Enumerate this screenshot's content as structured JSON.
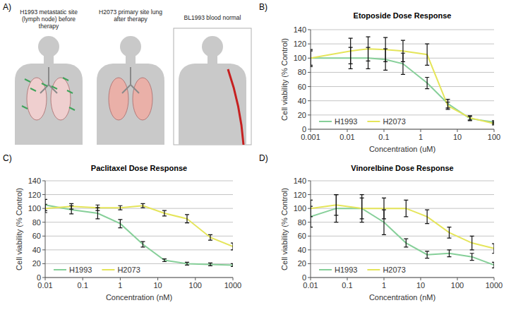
{
  "diagram": {
    "label": "A)",
    "panels": [
      {
        "caption": "H1993 metastatic site (lymph node) before therapy"
      },
      {
        "caption": "H2073 primary site lung after therapy"
      },
      {
        "caption": "BL1993 blood normal"
      }
    ]
  },
  "chart_data": [
    {
      "type": "line",
      "label": "B)",
      "title": "Etoposide Dose Response",
      "x_label": "Concentration (uM)",
      "y_label": "Cell viability (% Control)",
      "log": "x",
      "grid": true,
      "legend": "bottom-left",
      "xlim": [
        0.001,
        100
      ],
      "xticks": [
        0.001,
        0.01,
        0.1,
        1,
        10,
        100
      ],
      "ylim": [
        0,
        140
      ],
      "yticks": [
        0,
        20,
        40,
        60,
        80,
        100,
        120,
        140
      ],
      "x": [
        0.001,
        0.0123,
        0.037,
        0.11,
        0.33,
        1.5,
        5.5,
        22,
        100
      ],
      "series": [
        {
          "name": "H1993",
          "color": "#86cf99",
          "values": [
            100,
            100,
            100,
            98,
            92,
            65,
            36,
            15,
            10
          ],
          "errors": [
            12,
            15,
            15,
            15,
            15,
            8,
            6,
            3,
            2
          ]
        },
        {
          "name": "H2073",
          "color": "#e5e55a",
          "values": [
            100,
            110,
            113,
            112,
            110,
            105,
            33,
            16,
            8
          ],
          "errors": [
            10,
            18,
            17,
            17,
            15,
            15,
            5,
            3,
            2
          ]
        }
      ]
    },
    {
      "type": "line",
      "label": "C)",
      "title": "Paclitaxel Dose Response",
      "x_label": "Concentration (nM)",
      "y_label": "Cell viability (% Control)",
      "log": "x",
      "grid": true,
      "legend": "bottom-left",
      "xlim": [
        0.01,
        1000
      ],
      "xticks": [
        0.01,
        0.1,
        1,
        10,
        100,
        1000
      ],
      "ylim": [
        0,
        140
      ],
      "yticks": [
        0,
        20,
        40,
        60,
        80,
        100,
        120,
        140
      ],
      "x": [
        0.01,
        0.05,
        0.25,
        1,
        4,
        15,
        60,
        250,
        1000
      ],
      "series": [
        {
          "name": "H1993",
          "color": "#86cf99",
          "values": [
            105,
            98,
            93,
            78,
            48,
            25,
            20,
            19,
            18
          ],
          "errors": [
            8,
            6,
            8,
            6,
            4,
            2,
            2,
            2,
            2
          ]
        },
        {
          "name": "H2073",
          "color": "#e5e55a",
          "values": [
            100,
            103,
            101,
            101,
            104,
            93,
            85,
            58,
            45
          ],
          "errors": [
            6,
            4,
            4,
            3,
            3,
            4,
            6,
            4,
            5
          ]
        }
      ]
    },
    {
      "type": "line",
      "label": "D)",
      "title": "Vinorelbine Dose Response",
      "x_label": "Concentration (nM)",
      "y_label": "Cell viability (% Control)",
      "log": "x",
      "grid": true,
      "legend": "bottom-left",
      "xlim": [
        0.01,
        1000
      ],
      "xticks": [
        0.01,
        0.1,
        1,
        10,
        100,
        1000
      ],
      "ylim": [
        0,
        140
      ],
      "yticks": [
        0,
        20,
        40,
        60,
        80,
        100,
        120,
        140
      ],
      "x": [
        0.01,
        0.05,
        0.25,
        1,
        4,
        15,
        60,
        250,
        1000
      ],
      "series": [
        {
          "name": "H1993",
          "color": "#86cf99",
          "values": [
            88,
            100,
            100,
            80,
            50,
            33,
            35,
            30,
            18
          ],
          "errors": [
            15,
            20,
            20,
            18,
            6,
            5,
            5,
            5,
            4
          ]
        },
        {
          "name": "H2073",
          "color": "#e5e55a",
          "values": [
            100,
            105,
            100,
            100,
            100,
            88,
            65,
            50,
            42
          ],
          "errors": [
            12,
            15,
            15,
            15,
            12,
            10,
            8,
            10,
            7
          ]
        }
      ]
    }
  ]
}
